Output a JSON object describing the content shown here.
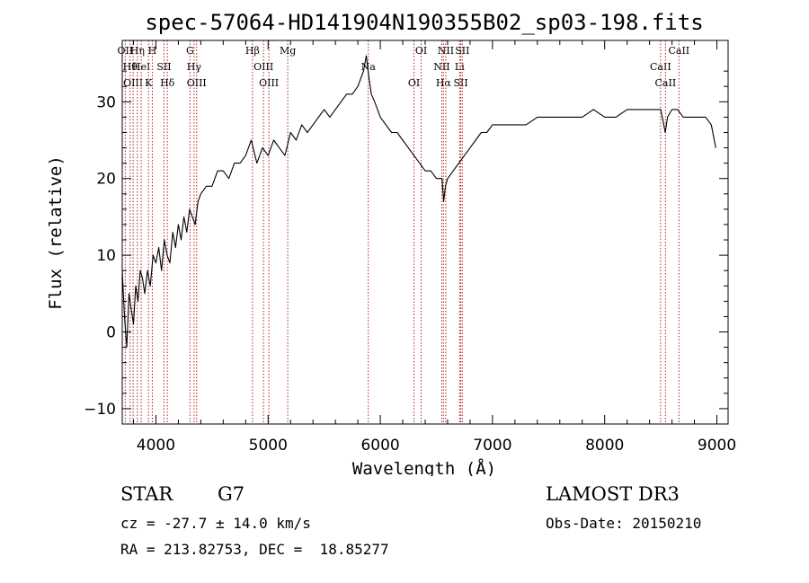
{
  "chart_data": {
    "type": "line",
    "title": "spec-57064-HD141904N190355B02_sp03-198.fits",
    "xlabel": "Wavelength (Å)",
    "ylabel": "Flux (relative)",
    "xlim": [
      3700,
      9100
    ],
    "ylim": [
      -12,
      38
    ],
    "xticks": [
      4000,
      5000,
      6000,
      7000,
      8000,
      9000
    ],
    "yticks": [
      -10,
      0,
      10,
      20,
      30
    ],
    "grid": false,
    "line_color": "#000000",
    "marker_color": "#b22222",
    "series": [
      {
        "x": [
          3700,
          3720,
          3740,
          3760,
          3780,
          3800,
          3820,
          3840,
          3860,
          3880,
          3900,
          3925,
          3950,
          3975,
          4000,
          4025,
          4050,
          4075,
          4100,
          4125,
          4150,
          4175,
          4200,
          4225,
          4250,
          4275,
          4300,
          4325,
          4350,
          4375,
          4400,
          4450,
          4500,
          4550,
          4600,
          4650,
          4700,
          4750,
          4800,
          4850,
          4900,
          4950,
          5000,
          5050,
          5100,
          5150,
          5200,
          5250,
          5300,
          5350,
          5400,
          5450,
          5500,
          5550,
          5600,
          5650,
          5700,
          5750,
          5800,
          5850,
          5875,
          5900,
          5920,
          5950,
          6000,
          6050,
          6100,
          6150,
          6200,
          6250,
          6300,
          6350,
          6400,
          6450,
          6500,
          6550,
          6565,
          6580,
          6600,
          6650,
          6700,
          6750,
          6800,
          6850,
          6900,
          6950,
          7000,
          7050,
          7100,
          7150,
          7200,
          7300,
          7400,
          7500,
          7600,
          7700,
          7800,
          7900,
          8000,
          8100,
          8200,
          8300,
          8400,
          8500,
          8540,
          8560,
          8600,
          8650,
          8700,
          8750,
          8800,
          8850,
          8900,
          8950,
          8990
        ],
        "y": [
          8,
          2,
          -2,
          5,
          3,
          1,
          6,
          4,
          8,
          7,
          5,
          8,
          6,
          10,
          9,
          11,
          8,
          12,
          10,
          9,
          13,
          11,
          14,
          12,
          15,
          13,
          16,
          15,
          14,
          17,
          18,
          19,
          19,
          21,
          21,
          20,
          22,
          22,
          23,
          25,
          22,
          24,
          23,
          25,
          24,
          23,
          26,
          25,
          27,
          26,
          27,
          28,
          29,
          28,
          29,
          30,
          31,
          31,
          32,
          34,
          36,
          33,
          31,
          30,
          28,
          27,
          26,
          26,
          25,
          24,
          23,
          22,
          21,
          21,
          20,
          20,
          17,
          19,
          20,
          21,
          22,
          23,
          24,
          25,
          26,
          26,
          27,
          27,
          27,
          27,
          27,
          27,
          28,
          28,
          28,
          28,
          28,
          29,
          28,
          28,
          29,
          29,
          29,
          29,
          26,
          28,
          29,
          29,
          28,
          28,
          28,
          28,
          28,
          27,
          24
        ]
      }
    ],
    "lines": [
      {
        "wavelength": 3727,
        "label": "OII"
      },
      {
        "wavelength": 3770,
        "label": "Hθ"
      },
      {
        "wavelength": 3797,
        "label": "OIII"
      },
      {
        "wavelength": 3835,
        "label": "Hη"
      },
      {
        "wavelength": 3869,
        "label": "HeI"
      },
      {
        "wavelength": 3934,
        "label": "K"
      },
      {
        "wavelength": 3968,
        "label": "H"
      },
      {
        "wavelength": 4072,
        "label": "SII"
      },
      {
        "wavelength": 4102,
        "label": "Hδ"
      },
      {
        "wavelength": 4304,
        "label": "G"
      },
      {
        "wavelength": 4340,
        "label": "Hγ"
      },
      {
        "wavelength": 4363,
        "label": "OIII"
      },
      {
        "wavelength": 4861,
        "label": "Hβ"
      },
      {
        "wavelength": 4959,
        "label": "OIII"
      },
      {
        "wavelength": 5007,
        "label": "OIII"
      },
      {
        "wavelength": 5175,
        "label": "Mg"
      },
      {
        "wavelength": 5893,
        "label": "Na"
      },
      {
        "wavelength": 6300,
        "label": "OI"
      },
      {
        "wavelength": 6364,
        "label": "OI"
      },
      {
        "wavelength": 6548,
        "label": "NII"
      },
      {
        "wavelength": 6563,
        "label": "Hα"
      },
      {
        "wavelength": 6584,
        "label": "NII"
      },
      {
        "wavelength": 6707,
        "label": "Li"
      },
      {
        "wavelength": 6717,
        "label": "SII"
      },
      {
        "wavelength": 6731,
        "label": "SII"
      },
      {
        "wavelength": 8498,
        "label": "CaII"
      },
      {
        "wavelength": 8542,
        "label": "CaII"
      },
      {
        "wavelength": 8662,
        "label": "CaII"
      }
    ]
  },
  "info": {
    "object_type": "STAR",
    "subclass": "G7",
    "survey": "LAMOST DR3",
    "redshift": "cz = -27.7 ± 14.0 km/s",
    "obs_date": "Obs-Date: 20150210",
    "coords": "RA = 213.82753, DEC =  18.85277"
  }
}
